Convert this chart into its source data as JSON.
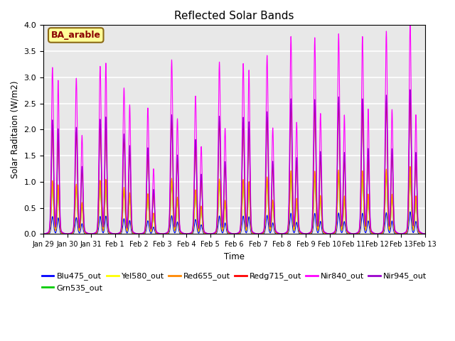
{
  "title": "Reflected Solar Bands",
  "xlabel": "Time",
  "ylabel": "Solar Raditaion (W/m2)",
  "ylim": [
    0,
    4.0
  ],
  "annotation_text": "BA_arable",
  "annotation_color": "#8B0000",
  "annotation_bg": "#FFFF99",
  "annotation_border": "#8B6914",
  "series_order": [
    "Blu475_out",
    "Grn535_out",
    "Yel580_out",
    "Red655_out",
    "Redg715_out",
    "Nir840_out",
    "Nir945_out"
  ],
  "series": {
    "Blu475_out": {
      "color": "#0000FF",
      "rel_scale": 0.105
    },
    "Grn535_out": {
      "color": "#00CC00",
      "rel_scale": 0.295
    },
    "Yel580_out": {
      "color": "#FFFF00",
      "rel_scale": 0.31
    },
    "Red655_out": {
      "color": "#FF8800",
      "rel_scale": 0.32
    },
    "Redg715_out": {
      "color": "#FF0000",
      "rel_scale": 0.655
    },
    "Nir840_out": {
      "color": "#FF00FF",
      "rel_scale": 1.0
    },
    "Nir945_out": {
      "color": "#9900CC",
      "rel_scale": 0.685
    }
  },
  "nir840_day_peaks": [
    3.08,
    2.88,
    3.1,
    2.7,
    2.33,
    3.22,
    2.55,
    3.18,
    3.15,
    3.3,
    3.65,
    3.63,
    3.7,
    3.65,
    3.75,
    3.9
  ],
  "secondary_peak_fractions": [
    0.92,
    0.62,
    1.02,
    0.88,
    0.5,
    0.65,
    0.62,
    0.6,
    0.96,
    0.58,
    0.55,
    0.6,
    0.58,
    0.62,
    0.6,
    0.55
  ],
  "xtick_labels": [
    "Jan 29",
    "Jan 30",
    "Jan 31",
    "Feb 1",
    "Feb 2",
    "Feb 3",
    "Feb 4",
    "Feb 5",
    "Feb 6",
    "Feb 7",
    "Feb 8",
    "Feb 9",
    "Feb 10",
    "Feb 11",
    "Feb 12",
    "Feb 13"
  ],
  "num_days": 16,
  "bg_color": "#E8E8E8",
  "grid_color": "white",
  "legend_entries": [
    [
      "Blu475_out",
      "#0000FF"
    ],
    [
      "Grn535_out",
      "#00CC00"
    ],
    [
      "Yel580_out",
      "#FFFF00"
    ],
    [
      "Red655_out",
      "#FF8800"
    ],
    [
      "Redg715_out",
      "#FF0000"
    ],
    [
      "Nir840_out",
      "#FF00FF"
    ],
    [
      "Nir945_out",
      "#9900CC"
    ]
  ]
}
